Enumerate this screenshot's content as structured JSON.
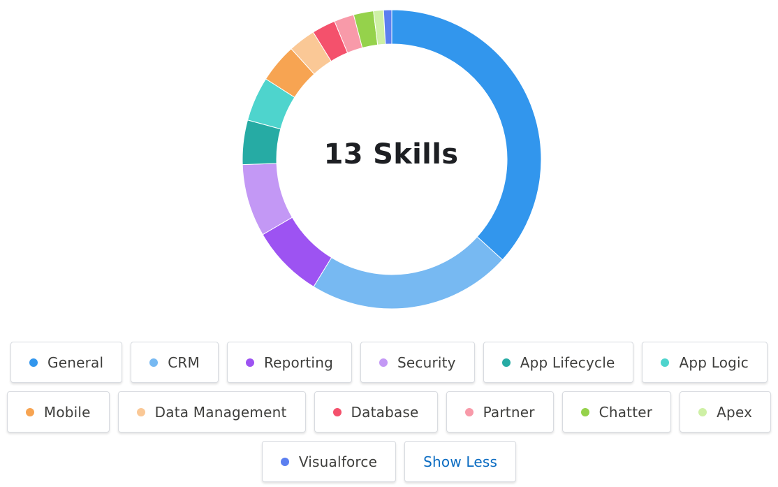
{
  "center_label": "13 Skills",
  "chart_data": {
    "type": "pie",
    "categories": [
      "General",
      "CRM",
      "Reporting",
      "Security",
      "App Lifecycle",
      "App Logic",
      "Mobile",
      "Data Management",
      "Database",
      "Partner",
      "Chatter",
      "Apex",
      "Visualforce"
    ],
    "values": [
      37.5,
      22.5,
      8.0,
      8.0,
      4.9,
      4.9,
      4.3,
      3.0,
      2.6,
      2.2,
      2.2,
      1.1,
      0.9
    ],
    "colors": [
      "#3296ed",
      "#77b9f2",
      "#9d53f2",
      "#c398f5",
      "#26aba4",
      "#4ed4cd",
      "#f7a452",
      "#fac896",
      "#f4516c",
      "#f89aa9",
      "#95d24b",
      "#cef0a5",
      "#5b7ff0"
    ],
    "legend": "bottom",
    "donut": true
  },
  "legend_items": [
    {
      "label": "General",
      "color": "#3296ed"
    },
    {
      "label": "CRM",
      "color": "#77b9f2"
    },
    {
      "label": "Reporting",
      "color": "#9d53f2"
    },
    {
      "label": "Security",
      "color": "#c398f5"
    },
    {
      "label": "App Lifecycle",
      "color": "#26aba4"
    },
    {
      "label": "App Logic",
      "color": "#4ed4cd"
    },
    {
      "label": "Mobile",
      "color": "#f7a452"
    },
    {
      "label": "Data Management",
      "color": "#fac896"
    },
    {
      "label": "Database",
      "color": "#f4516c"
    },
    {
      "label": "Partner",
      "color": "#f89aa9"
    },
    {
      "label": "Chatter",
      "color": "#95d24b"
    },
    {
      "label": "Apex",
      "color": "#cef0a5"
    },
    {
      "label": "Visualforce",
      "color": "#5b7ff0"
    }
  ],
  "show_less_label": "Show Less"
}
